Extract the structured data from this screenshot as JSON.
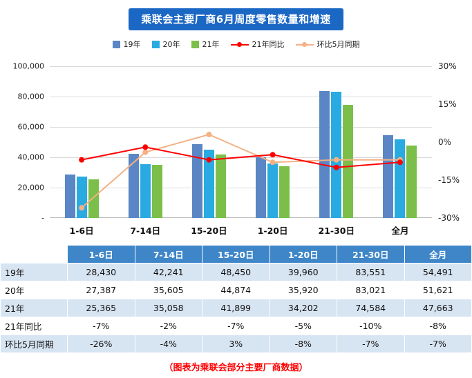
{
  "title": "乘联会主要厂商6月周度零售数量和增速",
  "caption": "（图表为乘联会部分主要厂商数据）",
  "colors": {
    "title_bg": "#1B67C4",
    "table_header_bg": "#3E86C8",
    "row_stripe": "#D7E4F2",
    "grid": "#D9D9D9"
  },
  "legend": [
    {
      "label": "19年",
      "type": "square",
      "color": "#5B86C5"
    },
    {
      "label": "20年",
      "type": "square",
      "color": "#29ABE2"
    },
    {
      "label": "21年",
      "type": "square",
      "color": "#7BBF4A"
    },
    {
      "label": "21年同比",
      "type": "line",
      "color": "#FF0000"
    },
    {
      "label": "环比5月同期",
      "type": "line",
      "color": "#F4B183"
    }
  ],
  "chart_data": {
    "type": "combo-bar-line",
    "title": "乘联会主要厂商6月周度零售数量和增速",
    "categories": [
      "1-6日",
      "7-14日",
      "15-20日",
      "1-20日",
      "21-30日",
      "全月"
    ],
    "bar_series": [
      {
        "name": "19年",
        "color": "#5B86C5",
        "values": [
          28430,
          42241,
          48450,
          39960,
          83551,
          54491
        ]
      },
      {
        "name": "20年",
        "color": "#29ABE2",
        "values": [
          27387,
          35605,
          44874,
          35920,
          83021,
          51621
        ]
      },
      {
        "name": "21年",
        "color": "#7BBF4A",
        "values": [
          25365,
          35058,
          41899,
          34202,
          74584,
          47663
        ]
      }
    ],
    "line_series": [
      {
        "name": "环比5月同期",
        "color": "#F4B183",
        "values": [
          -26,
          -4,
          3,
          -8,
          -7,
          -7
        ]
      },
      {
        "name": "21年同比",
        "color": "#FF0000",
        "values": [
          -7,
          -2,
          -7,
          -5,
          -10,
          -8
        ]
      }
    ],
    "left_axis": {
      "min": 0,
      "max": 100000,
      "ticks": [
        "100,000",
        "80,000",
        "60,000",
        "40,000",
        "20,000",
        "-"
      ]
    },
    "right_axis": {
      "min": -30,
      "max": 30,
      "ticks": [
        "30%",
        "15%",
        "0%",
        "-15%",
        "-30%"
      ]
    },
    "legend_position": "top",
    "grid": true
  },
  "table": {
    "corner": "",
    "columns": [
      "1-6日",
      "7-14日",
      "15-20日",
      "1-20日",
      "21-30日",
      "全月"
    ],
    "rows": [
      {
        "label": "19年",
        "values": [
          "28,430",
          "42,241",
          "48,450",
          "39,960",
          "83,551",
          "54,491"
        ]
      },
      {
        "label": "20年",
        "values": [
          "27,387",
          "35,605",
          "44,874",
          "35,920",
          "83,021",
          "51,621"
        ]
      },
      {
        "label": "21年",
        "values": [
          "25,365",
          "35,058",
          "41,899",
          "34,202",
          "74,584",
          "47,663"
        ]
      },
      {
        "label": "21年同比",
        "values": [
          "-7%",
          "-2%",
          "-7%",
          "-5%",
          "-10%",
          "-8%"
        ]
      },
      {
        "label": "环比5月同期",
        "values": [
          "-26%",
          "-4%",
          "3%",
          "-8%",
          "-7%",
          "-7%"
        ]
      }
    ]
  }
}
